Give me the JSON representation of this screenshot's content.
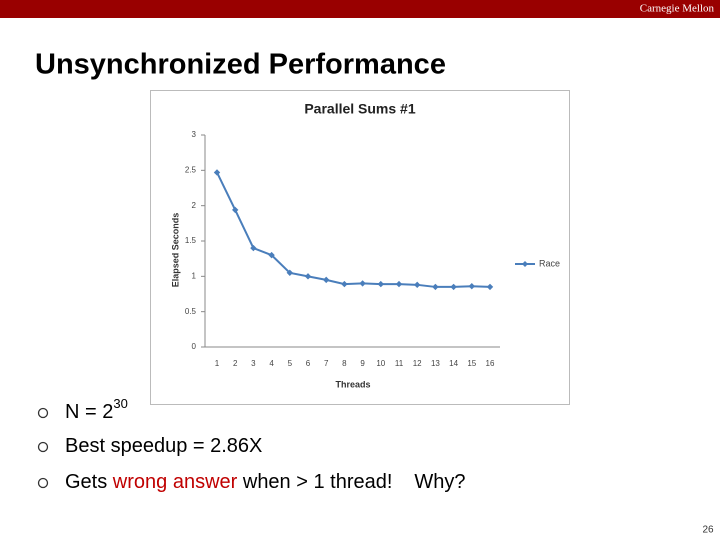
{
  "header": {
    "institution": "Carnegie Mellon",
    "title": "Unsynchronized Performance",
    "page_number": "26"
  },
  "chart_data": {
    "type": "line",
    "title": "Parallel Sums #1",
    "x_label": "Threads",
    "y_label": "Elapsed Seconds",
    "categories": [
      "1",
      "2",
      "3",
      "4",
      "5",
      "6",
      "7",
      "8",
      "9",
      "10",
      "11",
      "12",
      "13",
      "14",
      "15",
      "16"
    ],
    "series": [
      {
        "name": "Race",
        "color": "#4a7ebb",
        "values": [
          2.47,
          1.94,
          1.4,
          1.3,
          1.05,
          1.0,
          0.95,
          0.89,
          0.9,
          0.89,
          0.89,
          0.88,
          0.85,
          0.85,
          0.86,
          0.85
        ]
      }
    ],
    "ylim": [
      0,
      3
    ],
    "yticks": [
      0,
      0.5,
      1,
      1.5,
      2,
      2.5,
      3
    ],
    "grid": false,
    "legend": "right"
  },
  "bullets": [
    [
      {
        "text": "N = 2"
      },
      {
        "text": "30",
        "sup": true
      }
    ],
    [
      {
        "text": "Best speedup = 2.86X"
      }
    ],
    [
      {
        "text": "Gets "
      },
      {
        "text": "wrong answer",
        "color": "#c00000"
      },
      {
        "text": " when > 1 thread!"
      },
      {
        "text": "Why?",
        "gap": true
      }
    ]
  ]
}
